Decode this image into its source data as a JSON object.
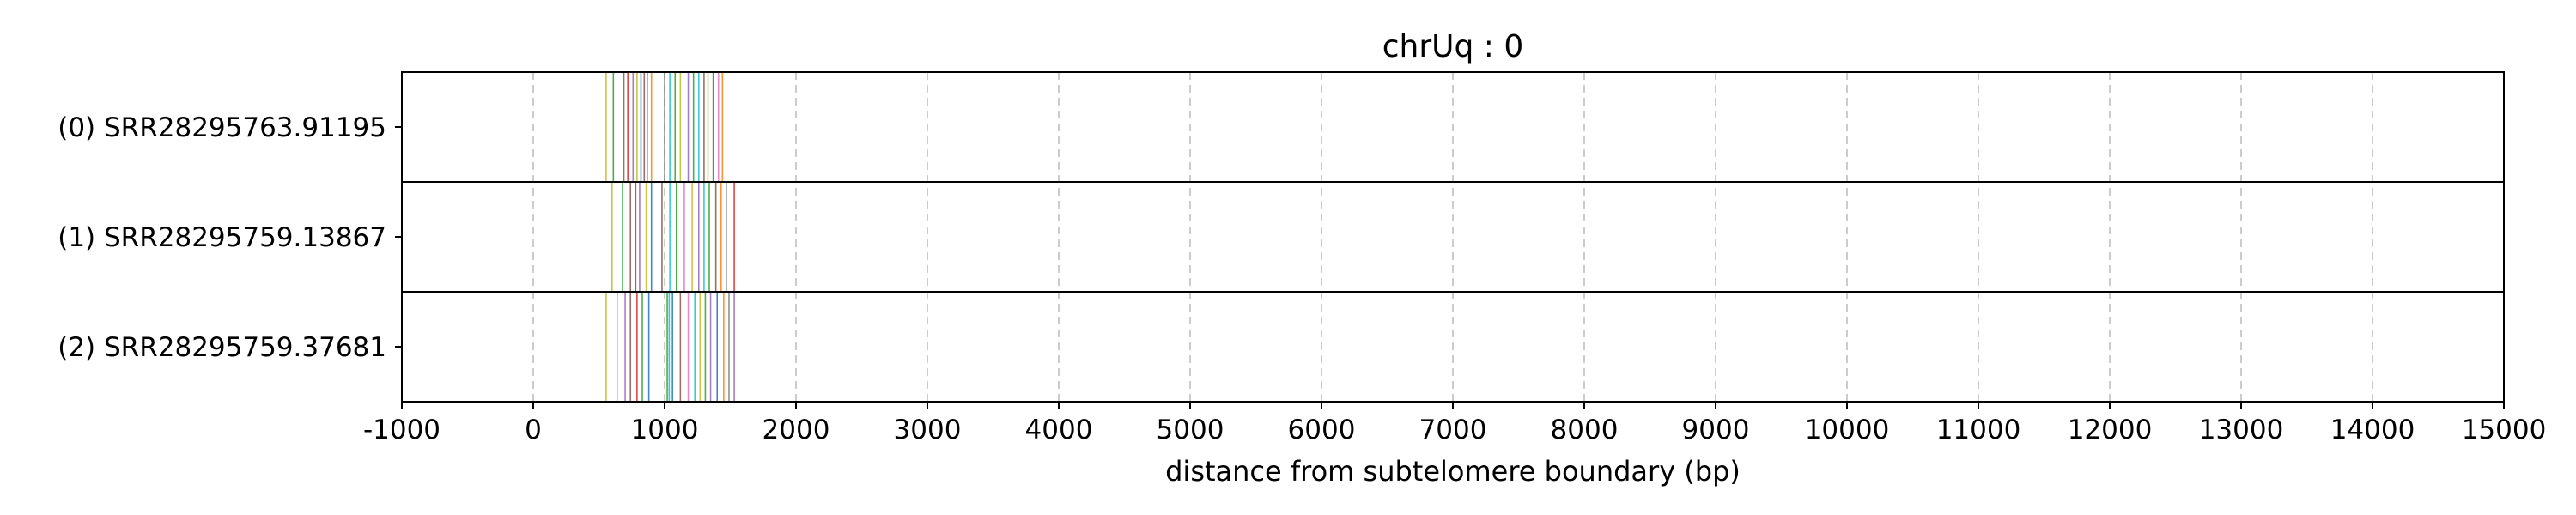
{
  "chart_data": {
    "type": "event_plot",
    "title": "chrUq : 0",
    "xlabel": "distance from subtelomere boundary (bp)",
    "ylabel": "",
    "xlim": [
      -1000,
      15000
    ],
    "x_ticks": [
      -1000,
      0,
      1000,
      2000,
      3000,
      4000,
      5000,
      6000,
      7000,
      8000,
      9000,
      10000,
      11000,
      12000,
      13000,
      14000,
      15000
    ],
    "x_tick_labels": [
      "-1000",
      "0",
      "1000",
      "2000",
      "3000",
      "4000",
      "5000",
      "6000",
      "7000",
      "8000",
      "9000",
      "10000",
      "11000",
      "12000",
      "13000",
      "14000",
      "15000"
    ],
    "x_grid": true,
    "x_grid_style": "dashed",
    "series": [
      {
        "name": "(0) SRR28295763.91195",
        "events": [
          {
            "x": 555,
            "color": "#bcbd22"
          },
          {
            "x": 610,
            "color": "#2ca02c"
          },
          {
            "x": 690,
            "color": "#8c564b"
          },
          {
            "x": 720,
            "color": "#d62728"
          },
          {
            "x": 760,
            "color": "#9467bd"
          },
          {
            "x": 790,
            "color": "#bcbd22"
          },
          {
            "x": 820,
            "color": "#1f77b4"
          },
          {
            "x": 845,
            "color": "#8c564b"
          },
          {
            "x": 870,
            "color": "#e377c2"
          },
          {
            "x": 900,
            "color": "#ff7f0e"
          },
          {
            "x": 1000,
            "color": "#7f7f7f"
          },
          {
            "x": 1040,
            "color": "#17becf"
          },
          {
            "x": 1080,
            "color": "#2ca02c"
          },
          {
            "x": 1120,
            "color": "#bcbd22"
          },
          {
            "x": 1180,
            "color": "#9467bd"
          },
          {
            "x": 1220,
            "color": "#2ca02c"
          },
          {
            "x": 1260,
            "color": "#17becf"
          },
          {
            "x": 1300,
            "color": "#8c564b"
          },
          {
            "x": 1330,
            "color": "#bcbd22"
          },
          {
            "x": 1370,
            "color": "#1f77b4"
          },
          {
            "x": 1410,
            "color": "#e377c2"
          },
          {
            "x": 1440,
            "color": "#ff7f0e"
          }
        ]
      },
      {
        "name": "(1) SRR28295759.13867",
        "events": [
          {
            "x": 600,
            "color": "#bcbd22"
          },
          {
            "x": 680,
            "color": "#2ca02c"
          },
          {
            "x": 740,
            "color": "#8c564b"
          },
          {
            "x": 780,
            "color": "#d62728"
          },
          {
            "x": 810,
            "color": "#9467bd"
          },
          {
            "x": 860,
            "color": "#bcbd22"
          },
          {
            "x": 900,
            "color": "#1f77b4"
          },
          {
            "x": 980,
            "color": "#8c564b"
          },
          {
            "x": 1040,
            "color": "#17becf"
          },
          {
            "x": 1090,
            "color": "#2ca02c"
          },
          {
            "x": 1150,
            "color": "#e377c2"
          },
          {
            "x": 1210,
            "color": "#bcbd22"
          },
          {
            "x": 1260,
            "color": "#9467bd"
          },
          {
            "x": 1300,
            "color": "#17becf"
          },
          {
            "x": 1340,
            "color": "#2ca02c"
          },
          {
            "x": 1390,
            "color": "#8c564b"
          },
          {
            "x": 1430,
            "color": "#ff7f0e"
          },
          {
            "x": 1470,
            "color": "#7f7f7f"
          },
          {
            "x": 1530,
            "color": "#d62728"
          }
        ]
      },
      {
        "name": "(2) SRR28295759.37681",
        "events": [
          {
            "x": 555,
            "color": "#bcbd22"
          },
          {
            "x": 640,
            "color": "#bcbd22"
          },
          {
            "x": 700,
            "color": "#9467bd"
          },
          {
            "x": 740,
            "color": "#8c564b"
          },
          {
            "x": 790,
            "color": "#d62728"
          },
          {
            "x": 830,
            "color": "#2ca02c"
          },
          {
            "x": 880,
            "color": "#1f77b4"
          },
          {
            "x": 1020,
            "color": "#2ca02c"
          },
          {
            "x": 1035,
            "color": "#17becf"
          },
          {
            "x": 1060,
            "color": "#1f77b4"
          },
          {
            "x": 1120,
            "color": "#8c564b"
          },
          {
            "x": 1180,
            "color": "#e377c2"
          },
          {
            "x": 1230,
            "color": "#17becf"
          },
          {
            "x": 1270,
            "color": "#bcbd22"
          },
          {
            "x": 1310,
            "color": "#2ca02c"
          },
          {
            "x": 1350,
            "color": "#9467bd"
          },
          {
            "x": 1400,
            "color": "#1f77b4"
          },
          {
            "x": 1450,
            "color": "#ff7f0e"
          },
          {
            "x": 1490,
            "color": "#7f7f7f"
          },
          {
            "x": 1530,
            "color": "#9467bd"
          }
        ]
      }
    ],
    "grid_color": "#cccccc",
    "frame_color": "#000000"
  }
}
